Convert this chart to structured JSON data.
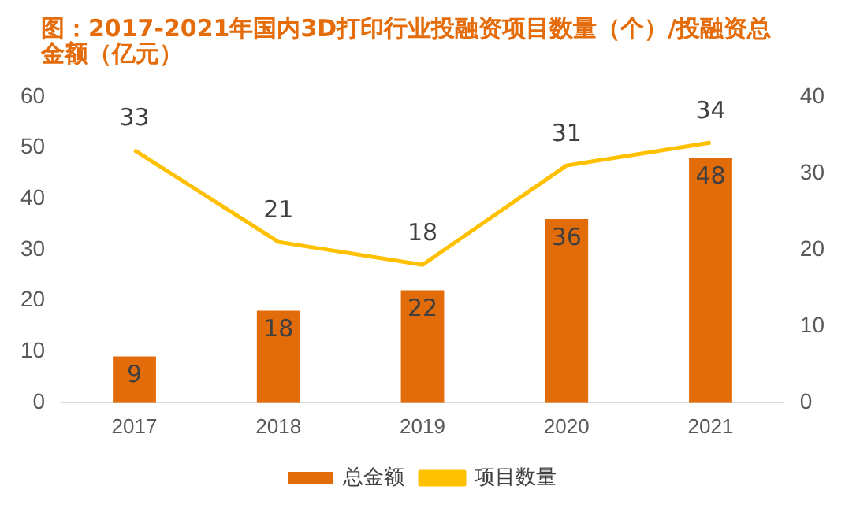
{
  "chart_data": {
    "type": "bar",
    "title": "图：2017-2021年国内3D打印行业投融资项目数量（个）/投融资总金额（亿元）",
    "categories": [
      "2017",
      "2018",
      "2019",
      "2020",
      "2021"
    ],
    "series": [
      {
        "name": "总金额",
        "color": "#e36c0a",
        "values": [
          9,
          18,
          22,
          36,
          48
        ]
      },
      {
        "name": "项目数量",
        "type": "line",
        "axis": "y2",
        "color": "#ffc000",
        "values": [
          33,
          21,
          18,
          31,
          34
        ]
      }
    ],
    "ylim": [
      0,
      60
    ],
    "yticks": [
      0,
      10,
      20,
      30,
      40,
      50,
      60
    ],
    "y2lim": [
      0,
      40
    ],
    "y2ticks": [
      0,
      10,
      20,
      30,
      40
    ],
    "data_labels": true,
    "grid": false,
    "legend": "bottom",
    "marker": "none"
  }
}
